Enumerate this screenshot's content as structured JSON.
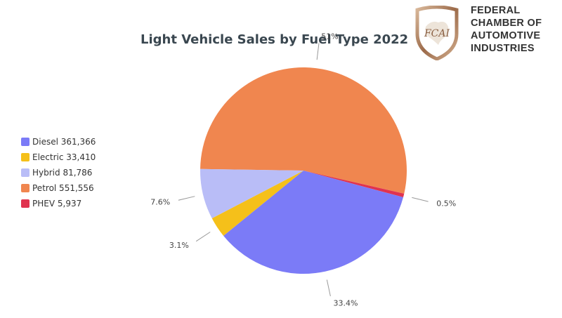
{
  "chart_data": {
    "type": "pie",
    "title": "Light Vehicle Sales by Fuel Type 2022",
    "slices": [
      {
        "name": "Petrol",
        "value": 551556,
        "label": "51%",
        "color": "#f0864f",
        "legend": "Petrol 551,556"
      },
      {
        "name": "PHEV",
        "value": 5937,
        "label": "0.5%",
        "color": "#e0334f",
        "legend": "PHEV 5,937"
      },
      {
        "name": "Diesel",
        "value": 361366,
        "label": "33.4%",
        "color": "#7b7bf7",
        "legend": "Diesel 361,366"
      },
      {
        "name": "Electric",
        "value": 33410,
        "label": "3.1%",
        "color": "#f5c01a",
        "legend": "Electric 33,410"
      },
      {
        "name": "Hybrid",
        "value": 81786,
        "label": "7.6%",
        "color": "#b9bdf7",
        "legend": "Hybrid 81,786"
      }
    ],
    "legend_order": [
      "Diesel",
      "Electric",
      "Hybrid",
      "Petrol",
      "PHEV"
    ],
    "legend_position": "left"
  },
  "header": {
    "org_lines": [
      "FEDERAL",
      "CHAMBER OF",
      "AUTOMOTIVE",
      "INDUSTRIES"
    ],
    "logo_text": "FCAI"
  },
  "colors": {
    "title": "#3a4750",
    "logo_gold": "#b08a6a",
    "leader_line": "#999999"
  }
}
